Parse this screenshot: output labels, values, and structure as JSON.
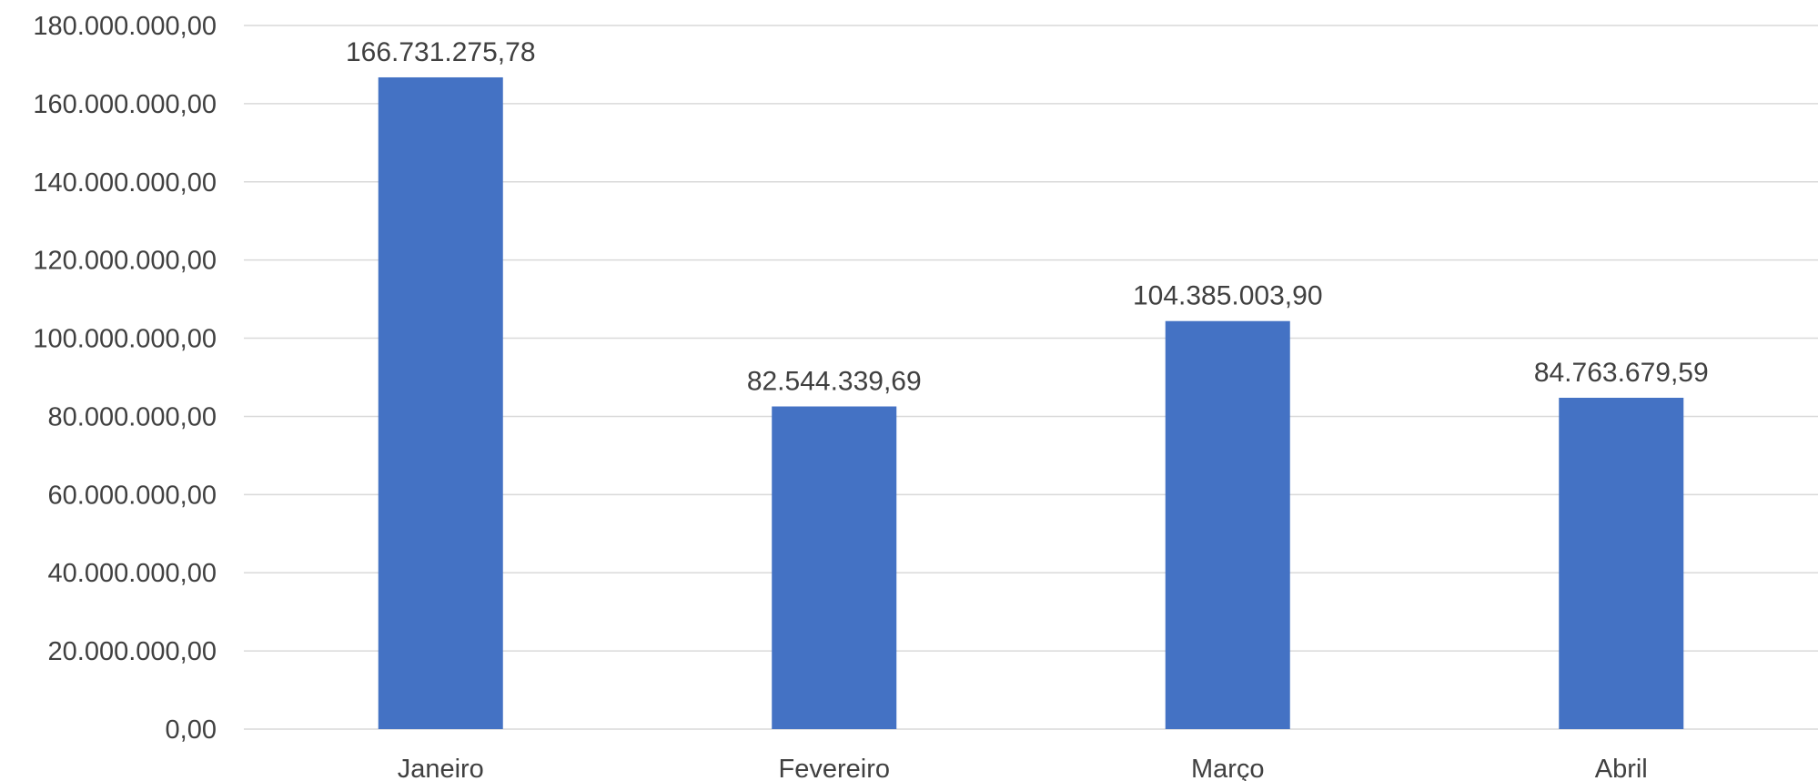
{
  "chart_data": {
    "type": "bar",
    "title": "",
    "xlabel": "",
    "ylabel": "",
    "categories": [
      "Janeiro",
      "Fevereiro",
      "Março",
      "Abril"
    ],
    "values": [
      166731275.78,
      82544339.69,
      104385003.9,
      84763679.59
    ],
    "value_labels": [
      "166.731.275,78",
      "82.544.339,69",
      "104.385.003,90",
      "84.763.679,59"
    ],
    "ylim": [
      0,
      180000000
    ],
    "yticks": [
      0,
      20000000,
      40000000,
      60000000,
      80000000,
      100000000,
      120000000,
      140000000,
      160000000,
      180000000
    ],
    "ytick_labels": [
      "0,00",
      "20.000.000,00",
      "40.000.000,00",
      "60.000.000,00",
      "80.000.000,00",
      "100.000.000,00",
      "120.000.000,00",
      "140.000.000,00",
      "160.000.000,00",
      "180.000.000,00"
    ],
    "grid": true,
    "legend": "none",
    "bar_color": "#4472c4"
  }
}
